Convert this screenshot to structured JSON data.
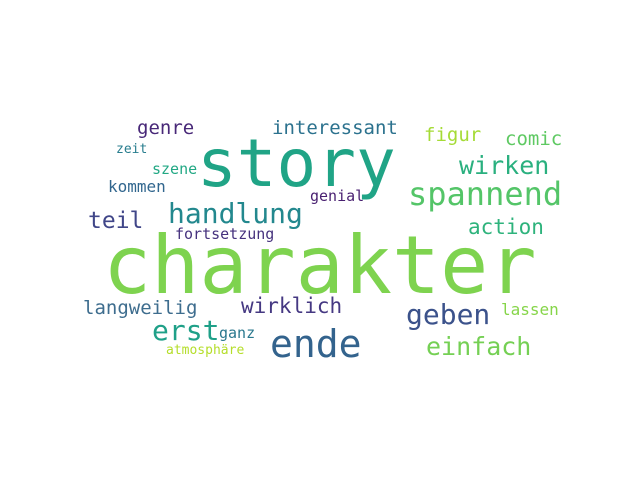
{
  "word_cloud": {
    "background": "#ffffff",
    "words": [
      {
        "id": "charakter",
        "text": "charakter",
        "color": "#7ed34f"
      },
      {
        "id": "story",
        "text": "story",
        "color": "#20a486"
      },
      {
        "id": "ende",
        "text": "ende",
        "color": "#33638d"
      },
      {
        "id": "spannend",
        "text": "spannend",
        "color": "#54c568"
      },
      {
        "id": "handlung",
        "text": "handlung",
        "color": "#23888e"
      },
      {
        "id": "geben",
        "text": "geben",
        "color": "#3b528b"
      },
      {
        "id": "erst",
        "text": "erst",
        "color": "#1fa088"
      },
      {
        "id": "wirken",
        "text": "wirken",
        "color": "#2ab07f"
      },
      {
        "id": "einfach",
        "text": "einfach",
        "color": "#75d054"
      },
      {
        "id": "teil",
        "text": "teil",
        "color": "#404688"
      },
      {
        "id": "wirklich",
        "text": "wirklich",
        "color": "#453882"
      },
      {
        "id": "action",
        "text": "action",
        "color": "#2eb37c"
      },
      {
        "id": "genre",
        "text": "genre",
        "color": "#482878"
      },
      {
        "id": "interessant",
        "text": "interessant",
        "color": "#2c728e"
      },
      {
        "id": "figur",
        "text": "figur",
        "color": "#a5db36"
      },
      {
        "id": "comic",
        "text": "comic",
        "color": "#5ec962"
      },
      {
        "id": "langweilig",
        "text": "langweilig",
        "color": "#3e6d8e"
      },
      {
        "id": "lassen",
        "text": "lassen",
        "color": "#86d549"
      },
      {
        "id": "kommen",
        "text": "kommen",
        "color": "#31668e"
      },
      {
        "id": "szene",
        "text": "szene",
        "color": "#22a884"
      },
      {
        "id": "genial",
        "text": "genial",
        "color": "#481f70"
      },
      {
        "id": "fortsetzung",
        "text": "fortsetzung",
        "color": "#46327e"
      },
      {
        "id": "ganz",
        "text": "ganz",
        "color": "#2a788e"
      },
      {
        "id": "zeit",
        "text": "zeit",
        "color": "#287d8e"
      },
      {
        "id": "atmosphare",
        "text": "atmosphäre",
        "color": "#b5de2b"
      }
    ]
  }
}
